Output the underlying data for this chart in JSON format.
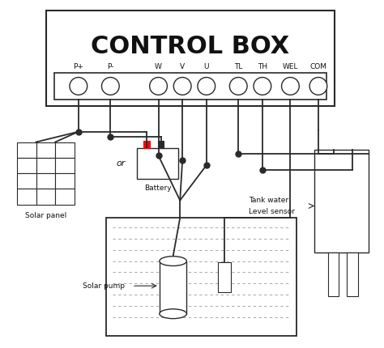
{
  "title": "CONTROL BOX",
  "bg_color": "#ffffff",
  "line_color": "#2a2a2a",
  "terminal_labels": [
    "P+",
    "P-",
    "W",
    "V",
    "U",
    "TL",
    "TH",
    "WEL",
    "COM"
  ],
  "solar_panel_label": "Solar panel",
  "battery_label": "Battery",
  "or_text": "or",
  "solar_pump_label": "Solar pump",
  "tank_water_label1": "Tank water",
  "tank_water_label2": "Level sensor",
  "font_color": "#111111",
  "figsize": [
    4.74,
    4.3
  ],
  "dpi": 100
}
